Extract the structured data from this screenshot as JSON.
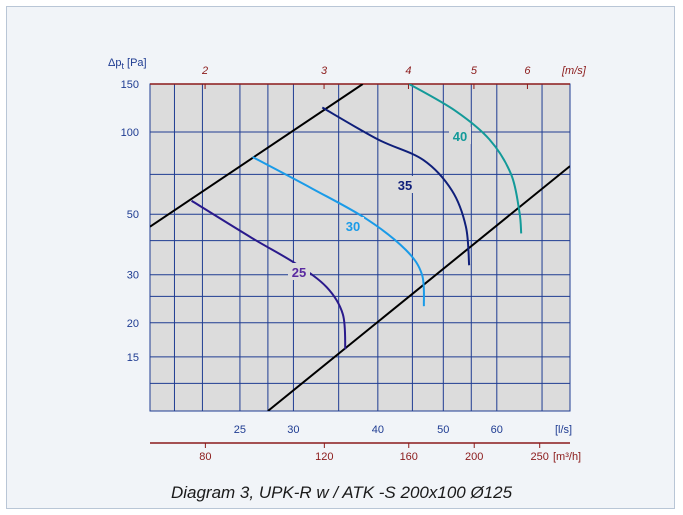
{
  "chart_data": {
    "type": "line",
    "title": "",
    "caption": "Diagram 3, UPK-R w / ATK -S 200x100 Ø125",
    "x_scale": "log",
    "y_scale": "log",
    "x_axis_ls": {
      "unit_label": "[l/s]",
      "range": [
        18.4,
        77
      ],
      "ticks": [
        25,
        30,
        40,
        50,
        60
      ]
    },
    "x_axis_m3h": {
      "unit_label": "[m³/h]",
      "ticks": [
        80,
        120,
        160,
        200,
        250
      ]
    },
    "x_axis_velocity": {
      "unit_label": "[m/s]",
      "ticks": [
        2,
        3,
        4,
        5,
        6
      ]
    },
    "y_axis": {
      "label": "Δpt [Pa]",
      "label_main": "Δp",
      "label_sub": "t",
      "label_unit": "[Pa]",
      "range": [
        9.5,
        150
      ],
      "ticks": [
        15,
        20,
        30,
        50,
        100,
        150
      ]
    },
    "grid": true,
    "series": [
      {
        "name": "25",
        "color": "#2a1a8c",
        "label_color": "#5a2aa0",
        "points": [
          [
            21.2,
            56
          ],
          [
            26,
            41
          ],
          [
            30.2,
            33
          ],
          [
            33.6,
            27
          ],
          [
            35.5,
            21.5
          ],
          [
            35.8,
            16
          ]
        ]
      },
      {
        "name": "30",
        "color": "#1a9be8",
        "label_color": "#1a9be8",
        "points": [
          [
            26.1,
            81
          ],
          [
            32,
            62
          ],
          [
            38.5,
            48
          ],
          [
            44,
            37
          ],
          [
            46.5,
            30
          ],
          [
            46.8,
            23
          ]
        ]
      },
      {
        "name": "35",
        "color": "#0f1f7a",
        "label_color": "#0f1f7a",
        "points": [
          [
            33.1,
            123
          ],
          [
            40,
            94
          ],
          [
            46.7,
            79
          ],
          [
            51.5,
            61
          ],
          [
            54,
            45
          ],
          [
            54.6,
            32.5
          ]
        ]
      },
      {
        "name": "40",
        "color": "#139a99",
        "label_color": "#139a99",
        "points": [
          [
            44.5,
            150
          ],
          [
            52,
            120
          ],
          [
            58.5,
            94
          ],
          [
            63,
            70
          ],
          [
            64.8,
            51
          ],
          [
            65.2,
            42.5
          ]
        ]
      }
    ],
    "boundaries": [
      {
        "color": "#000000",
        "points": [
          [
            18.4,
            45
          ],
          [
            38,
            150
          ]
        ]
      },
      {
        "color": "#000000",
        "points": [
          [
            27.5,
            9.5
          ],
          [
            77,
            75
          ]
        ]
      }
    ]
  }
}
